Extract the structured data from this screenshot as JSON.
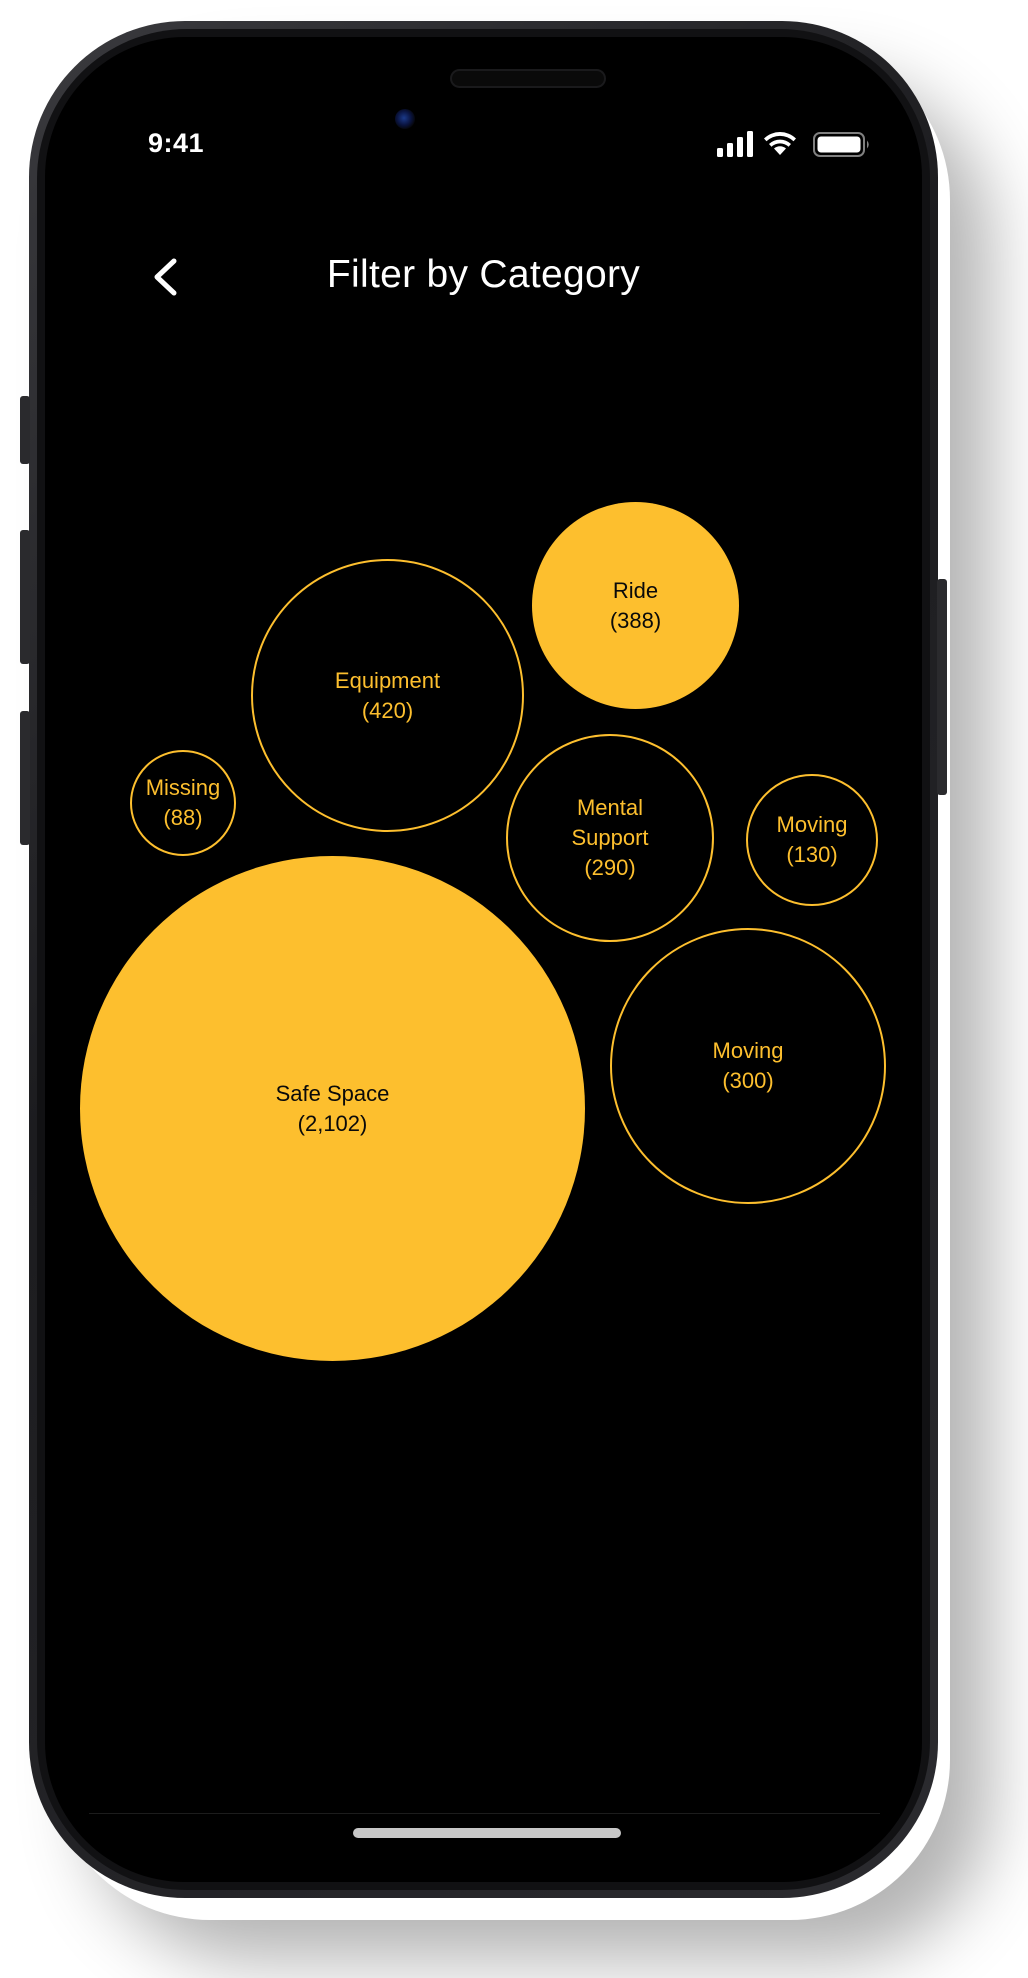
{
  "status_bar": {
    "time": "9:41",
    "icons": [
      "cellular-signal-icon",
      "wifi-icon",
      "battery-icon"
    ]
  },
  "header": {
    "back_icon": "chevron-left-icon",
    "title": "Filter by Category"
  },
  "colors": {
    "accent": "#fdbf2e",
    "background": "#000000",
    "text": "#ffffff"
  },
  "categories": [
    {
      "name": "Ride",
      "count": "(388)",
      "selected": true
    },
    {
      "name": "Equipment",
      "count": "(420)",
      "selected": false
    },
    {
      "name": "Missing",
      "count": "(88)",
      "selected": false
    },
    {
      "name": "Mental Support",
      "name_lines": [
        "Mental",
        "Support"
      ],
      "count": "(290)",
      "selected": false
    },
    {
      "name": "Moving",
      "count": "(130)",
      "selected": false
    },
    {
      "name": "Safe Space",
      "count": "(2,102)",
      "selected": true
    },
    {
      "name": "Moving",
      "count": "(300)",
      "selected": false
    }
  ]
}
